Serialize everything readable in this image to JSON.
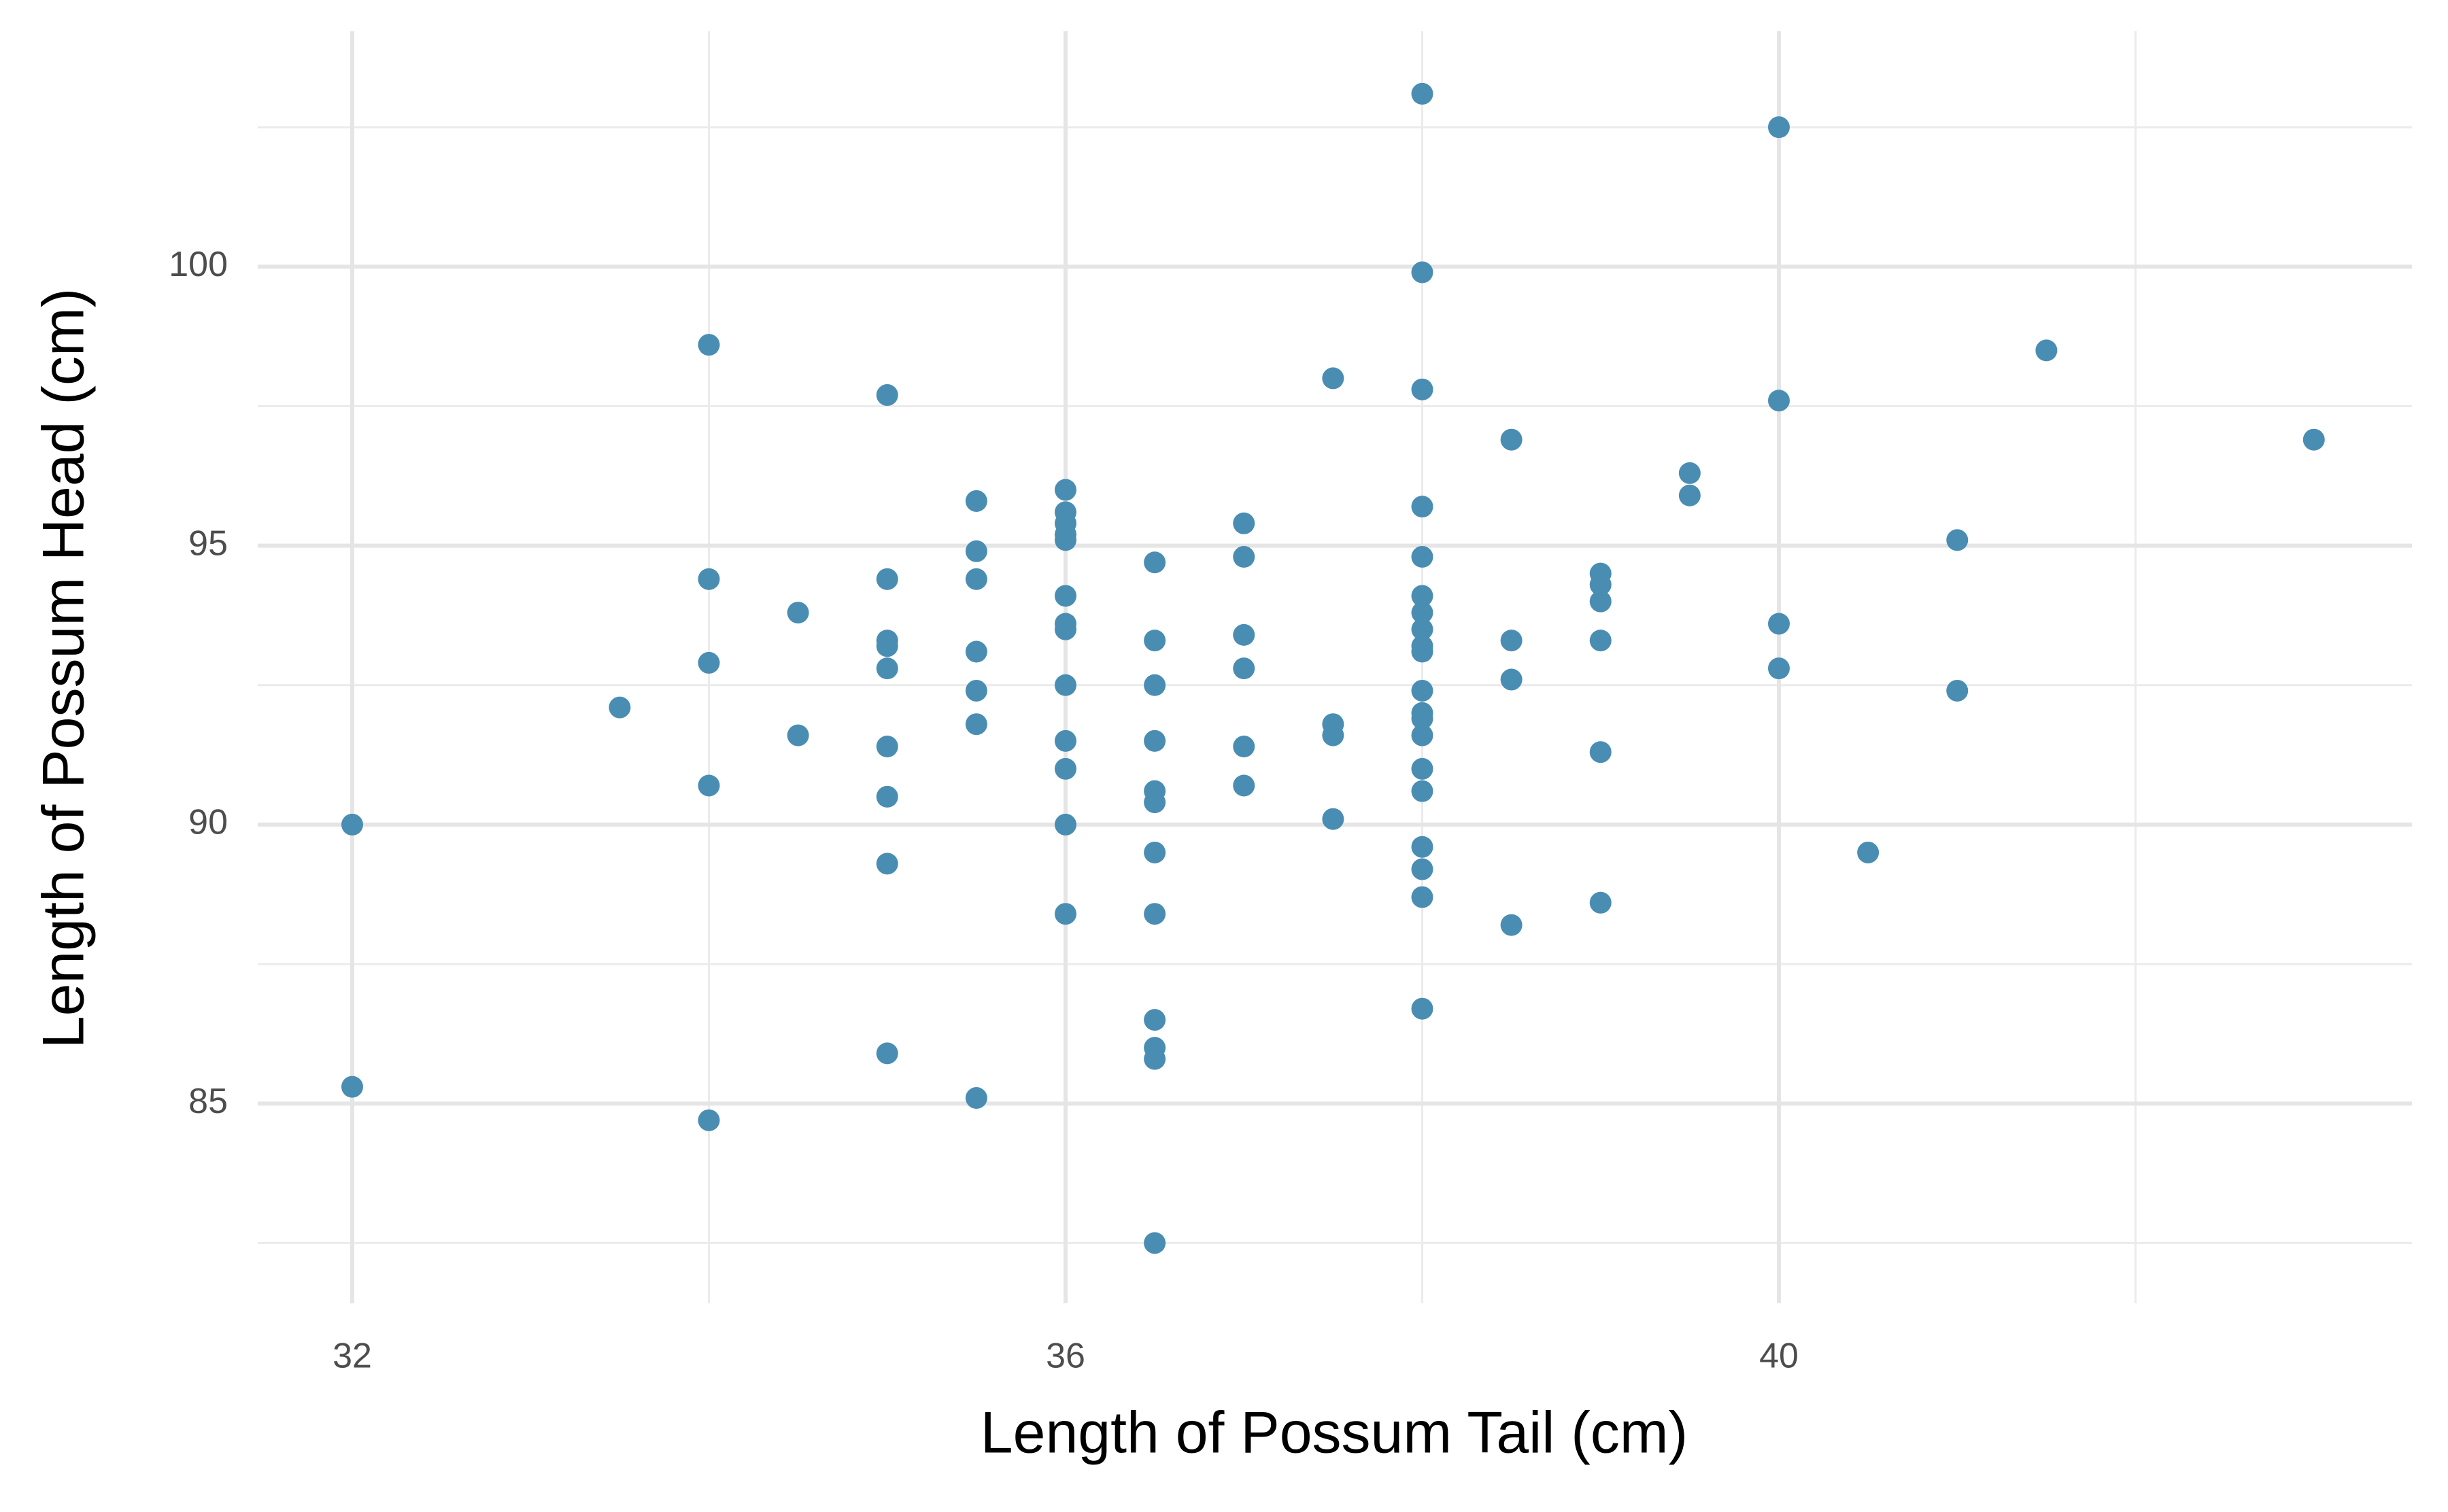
{
  "chart_data": {
    "type": "scatter",
    "x_label": "Length of Possum Tail (cm)",
    "y_label": "Length of Possum Head (cm)",
    "xlim": [
      31.47,
      43.55
    ],
    "ylim": [
      81.42,
      104.22
    ],
    "xticks": [
      32,
      36,
      40
    ],
    "yticks": [
      85,
      90,
      95,
      100
    ],
    "xminor": [
      34,
      38,
      42
    ],
    "yminor": [
      82.5,
      87.5,
      92.5,
      97.5,
      102.5
    ],
    "grid": true,
    "series": [
      {
        "color": "#4a8db3",
        "x": [
          32,
          32,
          33.5,
          34,
          34,
          34,
          34,
          34,
          34.5,
          34.5,
          35,
          35,
          35,
          35,
          35,
          35,
          35,
          35,
          35,
          35.5,
          35.5,
          35.5,
          35.5,
          35.5,
          35.5,
          35.5,
          36,
          36,
          36,
          36,
          36,
          36,
          36,
          36,
          36,
          36,
          36,
          36,
          36,
          36.5,
          36.5,
          36.5,
          36.5,
          36.5,
          36.5,
          36.5,
          36.5,
          36.5,
          36.5,
          36.5,
          36.5,
          37,
          37,
          37,
          37,
          37,
          37,
          37.5,
          37.5,
          37.5,
          37.5,
          38,
          38,
          38,
          38,
          38,
          38,
          38,
          38,
          38,
          38,
          38,
          38,
          38,
          38,
          38,
          38,
          38,
          38,
          38,
          38,
          38.5,
          38.5,
          38.5,
          38.5,
          39,
          39,
          39,
          39,
          39,
          39,
          39.5,
          39.5,
          40,
          40,
          40,
          40,
          40.5,
          41,
          41,
          41.5,
          43
        ],
        "y": [
          90.0,
          85.3,
          92.1,
          98.6,
          94.4,
          92.9,
          90.7,
          84.7,
          93.8,
          91.6,
          97.7,
          94.4,
          93.3,
          93.2,
          92.8,
          91.4,
          90.5,
          89.3,
          85.9,
          95.8,
          94.9,
          94.4,
          93.1,
          92.4,
          91.8,
          85.1,
          96.0,
          95.6,
          95.4,
          95.2,
          95.1,
          94.1,
          93.6,
          93.5,
          92.5,
          91.5,
          91.0,
          90.0,
          88.4,
          94.7,
          93.3,
          92.5,
          91.5,
          90.6,
          90.4,
          89.5,
          88.4,
          86.5,
          86.0,
          85.8,
          82.5,
          95.4,
          94.8,
          93.4,
          92.8,
          91.4,
          90.7,
          98.0,
          91.8,
          91.6,
          90.1,
          103.1,
          99.9,
          97.8,
          95.7,
          94.8,
          94.1,
          93.8,
          93.5,
          93.2,
          93.1,
          92.4,
          92.0,
          91.9,
          91.6,
          91.0,
          90.6,
          89.6,
          89.2,
          88.7,
          86.7,
          96.9,
          93.3,
          92.6,
          88.2,
          94.5,
          94.3,
          94.0,
          93.3,
          91.3,
          88.6,
          96.3,
          95.9,
          102.5,
          97.6,
          93.6,
          92.8,
          89.5,
          95.1,
          92.4,
          98.5,
          96.9
        ]
      }
    ]
  }
}
